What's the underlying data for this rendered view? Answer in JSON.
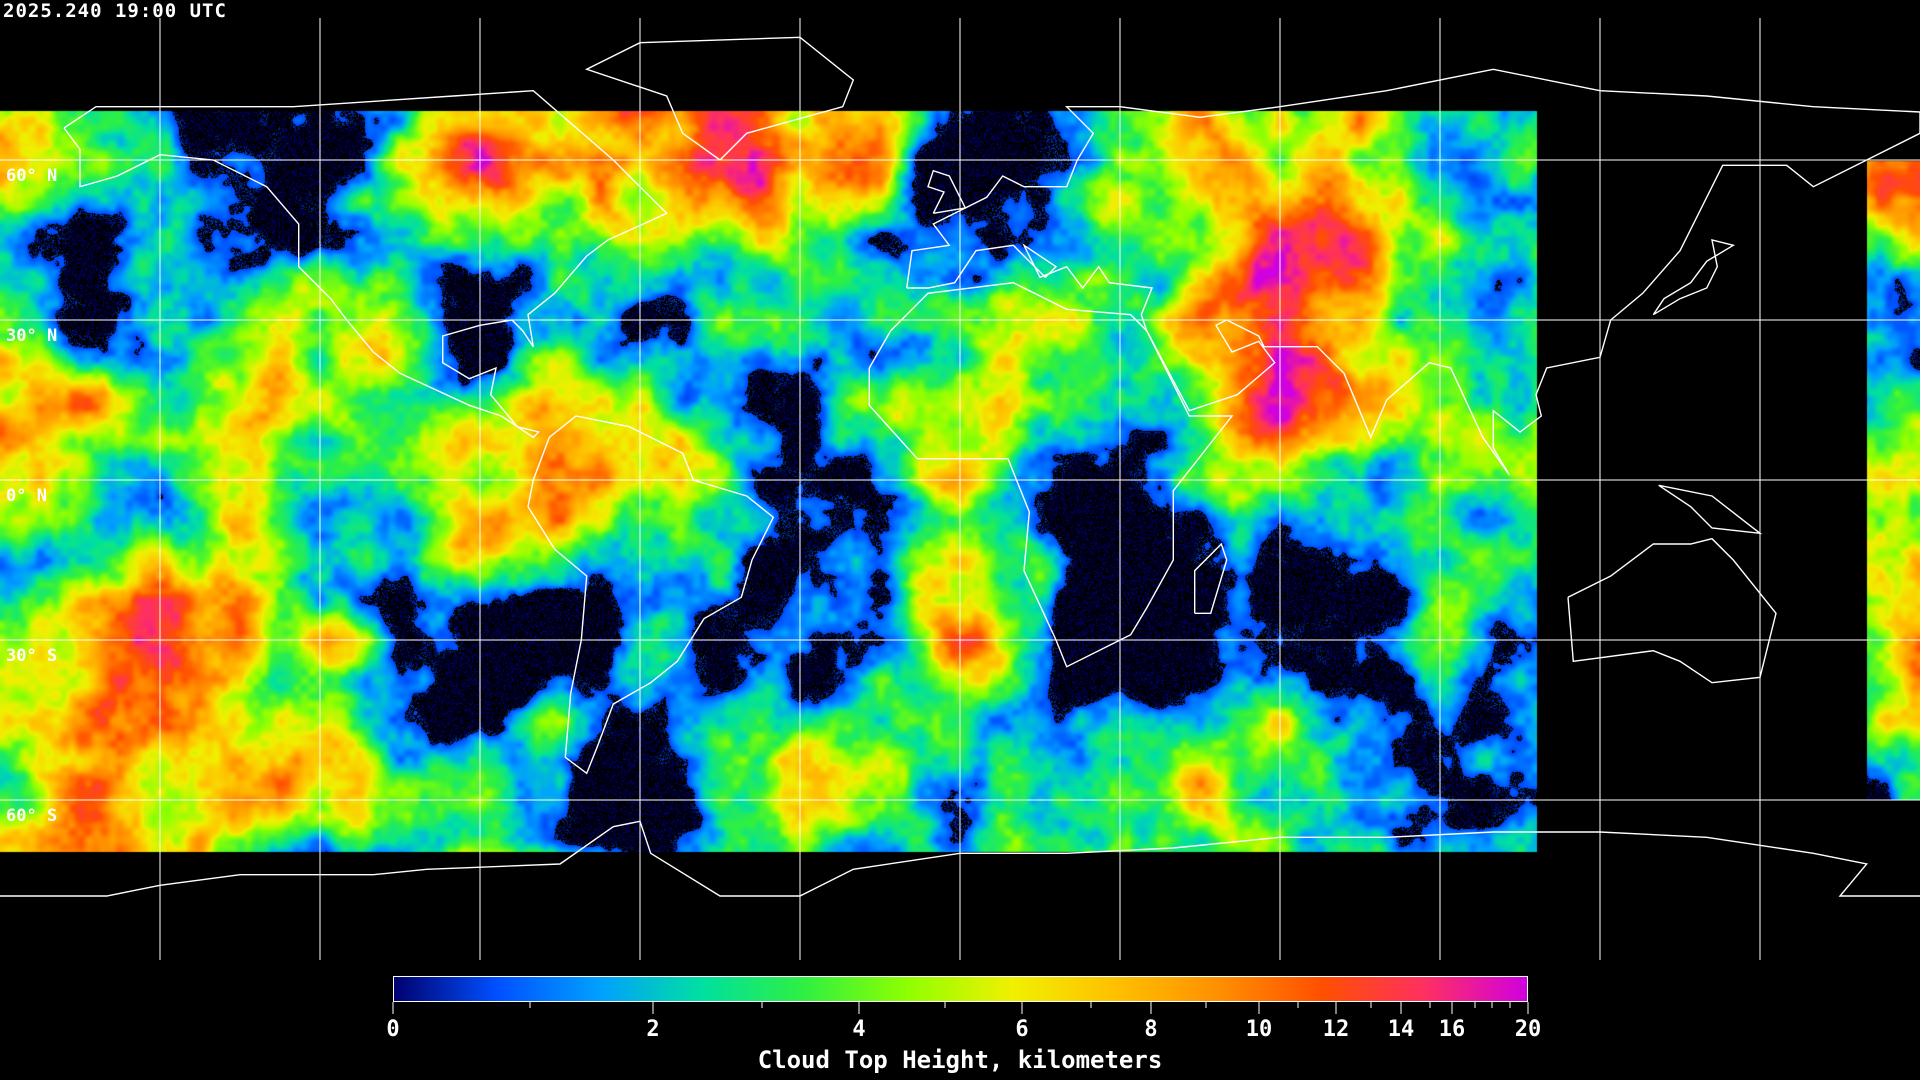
{
  "header": {
    "timestamp": "2025.240 19:00 UTC"
  },
  "map": {
    "projection": "equirectangular",
    "lat_labels": [
      {
        "text": "60° N",
        "lat": 60
      },
      {
        "text": "30° N",
        "lat": 30
      },
      {
        "text": "0° N",
        "lat": 0
      },
      {
        "text": "30° S",
        "lat": -30
      },
      {
        "text": "60° S",
        "lat": -60
      }
    ],
    "grid_lat_step_deg": 30,
    "grid_lon_step_deg": 30,
    "grid_color": "#ffffff",
    "coastline_color": "#ffffff",
    "background_color": "#000000"
  },
  "colorbar": {
    "title": "Cloud Top Height, kilometers",
    "min": 0,
    "max": 20,
    "tick_labels": [
      "0",
      "2",
      "4",
      "6",
      "8",
      "10",
      "12",
      "14",
      "16",
      "20"
    ],
    "major_ticks": [
      0,
      2,
      4,
      6,
      8,
      10,
      12,
      14,
      16,
      20
    ],
    "minor_ticks": [
      1,
      3,
      5,
      7,
      9,
      11,
      13,
      15,
      17,
      18,
      19
    ],
    "color_stops": [
      "#00006e",
      "#0050ff",
      "#00a0ff",
      "#00e0a0",
      "#30f040",
      "#90ff00",
      "#f0f000",
      "#ffc000",
      "#ff9000",
      "#ff5000",
      "#ff3060",
      "#d000e0"
    ]
  }
}
